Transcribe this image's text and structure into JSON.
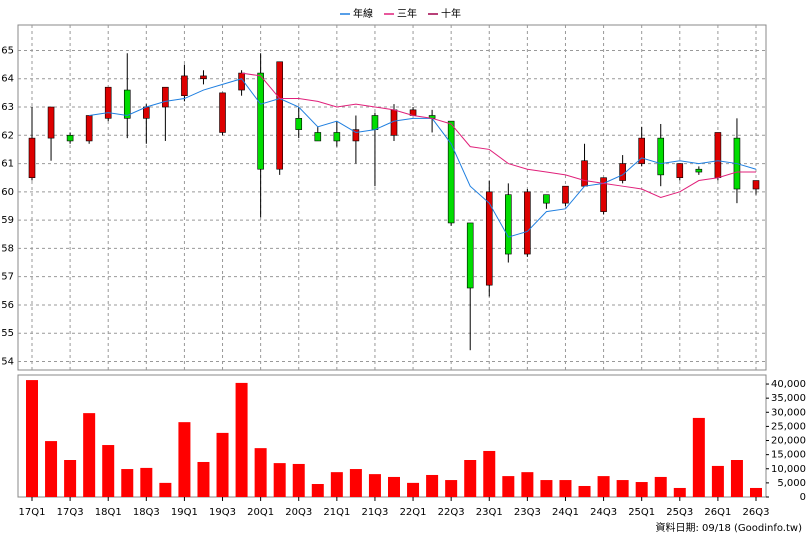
{
  "chart_data": [
    {
      "type": "candlestick",
      "categories": [
        "17Q1",
        null,
        "17Q3",
        null,
        "18Q1",
        null,
        "18Q3",
        null,
        "19Q1",
        null,
        "19Q3",
        null,
        "20Q1",
        null,
        "20Q3",
        null,
        "21Q1",
        null,
        "21Q3",
        null,
        "22Q1",
        null,
        "22Q3",
        null,
        "23Q1",
        null,
        "23Q3",
        null,
        "24Q1",
        null,
        "24Q3",
        null,
        "25Q1",
        null,
        "25Q3",
        null,
        "26Q1",
        null,
        "26Q3"
      ],
      "open": [
        60.5,
        61.9,
        62.0,
        61.8,
        62.6,
        63.6,
        62.6,
        63.0,
        63.4,
        64.0,
        62.1,
        63.6,
        64.2,
        60.8,
        62.6,
        62.1,
        62.1,
        61.8,
        62.7,
        62.0,
        62.7,
        62.7,
        62.5,
        58.9,
        56.7,
        59.9,
        57.8,
        59.9,
        59.6,
        60.2,
        59.3,
        60.4,
        61.0,
        61.9,
        60.5,
        60.8,
        60.5,
        61.9,
        60.1
      ],
      "high": [
        63.0,
        63.0,
        62.1,
        62.7,
        63.7,
        64.9,
        63.1,
        63.7,
        64.5,
        64.3,
        63.5,
        64.3,
        64.9,
        64.6,
        63.0,
        62.3,
        62.5,
        62.7,
        62.8,
        63.1,
        63.0,
        62.9,
        62.5,
        58.9,
        60.4,
        60.3,
        60.1,
        59.9,
        60.2,
        61.7,
        60.5,
        61.3,
        62.3,
        62.4,
        61.0,
        60.9,
        62.1,
        62.6,
        60.4
      ],
      "low": [
        60.4,
        61.1,
        61.7,
        61.7,
        62.5,
        61.9,
        61.7,
        61.8,
        63.2,
        63.8,
        62.0,
        63.4,
        59.1,
        60.6,
        61.9,
        61.8,
        61.6,
        61.0,
        60.2,
        61.8,
        62.7,
        62.1,
        58.8,
        54.4,
        56.3,
        57.5,
        57.7,
        59.4,
        59.5,
        60.2,
        59.2,
        60.3,
        60.9,
        60.2,
        60.4,
        60.6,
        60.4,
        59.6,
        59.9
      ],
      "close": [
        61.9,
        63.0,
        61.8,
        62.7,
        63.7,
        62.6,
        63.0,
        63.7,
        64.1,
        64.1,
        63.5,
        64.2,
        60.8,
        64.6,
        62.2,
        61.8,
        61.8,
        62.2,
        62.2,
        62.9,
        62.9,
        62.6,
        58.9,
        56.6,
        60.0,
        57.8,
        60.0,
        59.6,
        60.2,
        61.1,
        60.5,
        61.0,
        61.9,
        60.6,
        61.0,
        60.7,
        62.1,
        60.1,
        60.4
      ],
      "up_color": "#dd0000",
      "down_color": "#00dd00",
      "series": [
        {
          "name": "年線",
          "color": "#1f7fe0",
          "values": [
            null,
            null,
            null,
            62.7,
            62.8,
            62.7,
            63.0,
            63.2,
            63.3,
            63.6,
            63.8,
            64.0,
            63.1,
            63.3,
            63.0,
            62.3,
            62.5,
            62.1,
            62.2,
            62.5,
            62.6,
            62.6,
            61.7,
            60.2,
            59.6,
            58.4,
            58.6,
            59.3,
            59.4,
            60.2,
            60.3,
            60.6,
            61.2,
            61.0,
            61.1,
            61.0,
            61.1,
            61.0,
            60.8
          ]
        },
        {
          "name": "三年",
          "color": "#e0207a",
          "values": [
            null,
            null,
            null,
            null,
            null,
            null,
            null,
            null,
            null,
            null,
            null,
            64.2,
            64.1,
            63.3,
            63.3,
            63.2,
            63.0,
            63.1,
            63.0,
            62.9,
            62.7,
            62.6,
            62.4,
            61.6,
            61.5,
            61.0,
            60.8,
            60.7,
            60.6,
            60.4,
            60.3,
            60.2,
            60.1,
            59.8,
            60.0,
            60.4,
            60.5,
            60.7,
            60.7
          ]
        },
        {
          "name": "十年",
          "color": "#a0004a",
          "values": [
            null,
            null,
            null,
            null,
            null,
            null,
            null,
            null,
            null,
            null,
            null,
            null,
            null,
            null,
            null,
            null,
            null,
            null,
            null,
            null,
            null,
            null,
            null,
            null,
            null,
            null,
            null,
            null,
            null,
            null,
            null,
            null,
            null,
            null,
            null,
            null,
            null,
            null,
            null
          ]
        }
      ],
      "ylim": [
        53.7,
        65.9
      ],
      "yticks": [
        54,
        55,
        56,
        57,
        58,
        59,
        60,
        61,
        62,
        63,
        64,
        65
      ],
      "grid": true
    },
    {
      "type": "bar",
      "color": "#ff0000",
      "values": [
        41400,
        19800,
        13100,
        29700,
        18400,
        9900,
        10300,
        5000,
        26500,
        12400,
        22700,
        40400,
        17300,
        12000,
        11700,
        4600,
        8800,
        9900,
        8100,
        7100,
        5000,
        7800,
        6000,
        13100,
        16300,
        7400,
        8800,
        6000,
        6000,
        3900,
        7400,
        6000,
        5300,
        7100,
        3200,
        28000,
        11000,
        13100,
        3200
      ],
      "ylim": [
        0,
        43200
      ],
      "yticks": [
        0,
        {
          "value": 5000,
          "label": "5,000"
        },
        {
          "value": 10000,
          "label": "10,000"
        },
        {
          "value": 15000,
          "label": "15,000"
        },
        {
          "value": 20000,
          "label": "20,000"
        },
        {
          "value": 25000,
          "label": "25,000"
        },
        {
          "value": 30000,
          "label": "30,000"
        },
        {
          "value": 35000,
          "label": "35,000"
        },
        {
          "value": 40000,
          "label": "40,000"
        }
      ]
    }
  ],
  "footer": "資料日期: 09/18  (Goodinfo.tw)"
}
